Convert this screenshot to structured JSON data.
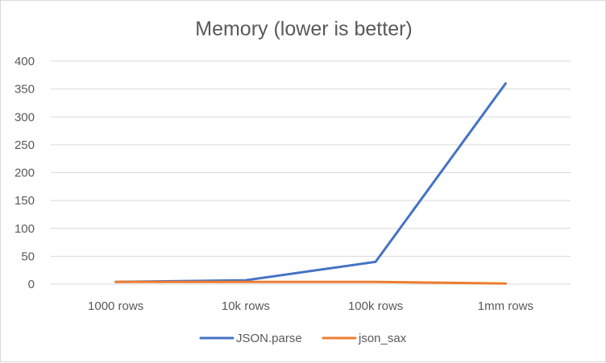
{
  "chart_data": {
    "type": "line",
    "title": "Memory (lower is better)",
    "categories": [
      "1000 rows",
      "10k rows",
      "100k rows",
      "1mm rows"
    ],
    "ylim": [
      0,
      400
    ],
    "yticks": [
      0,
      50,
      100,
      150,
      200,
      250,
      300,
      350,
      400
    ],
    "grid": true,
    "legend_position": "bottom",
    "series": [
      {
        "name": "JSON.parse",
        "color": "#4472C4",
        "values": [
          4,
          7,
          40,
          360
        ]
      },
      {
        "name": "json_sax",
        "color": "#ED7D31",
        "values": [
          4,
          4,
          4,
          1
        ]
      }
    ]
  }
}
